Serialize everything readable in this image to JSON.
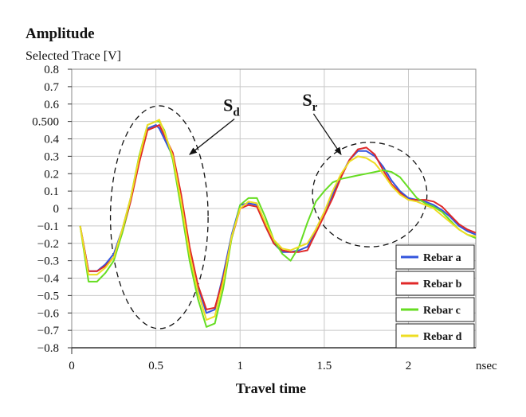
{
  "chart_data": {
    "type": "line",
    "title": "Amplitude",
    "ylabel": "Selected Trace [V]",
    "xlabel": "Travel time",
    "x_unit": "nsec",
    "xlim": [
      0,
      2.4
    ],
    "ylim": [
      -0.8,
      0.8
    ],
    "x_ticks": [
      "0",
      "0.5",
      "1",
      "1.5",
      "2"
    ],
    "y_ticks": [
      "0.8",
      "0.7",
      "0.6",
      "0.500",
      "0.4",
      "0.3",
      "0.2",
      "0.1",
      "0",
      "−0.1",
      "−0.2",
      "−0.3",
      "−0.4",
      "−0.5",
      "−0.6",
      "−0.7",
      "−0.8"
    ],
    "y_tick_values": [
      0.8,
      0.7,
      0.6,
      0.5,
      0.4,
      0.3,
      0.2,
      0.1,
      0,
      -0.1,
      -0.2,
      -0.3,
      -0.4,
      -0.5,
      -0.6,
      -0.7,
      -0.8
    ],
    "grid": true,
    "legend_position": "bottom-right",
    "x": [
      0.05,
      0.1,
      0.15,
      0.2,
      0.25,
      0.3,
      0.35,
      0.4,
      0.45,
      0.5,
      0.52,
      0.55,
      0.6,
      0.65,
      0.7,
      0.75,
      0.8,
      0.85,
      0.9,
      0.95,
      1.0,
      1.05,
      1.1,
      1.15,
      1.2,
      1.25,
      1.3,
      1.35,
      1.4,
      1.45,
      1.5,
      1.55,
      1.6,
      1.65,
      1.7,
      1.75,
      1.8,
      1.85,
      1.9,
      1.95,
      2.0,
      2.05,
      2.1,
      2.15,
      2.2,
      2.25,
      2.3,
      2.35,
      2.4
    ],
    "series": [
      {
        "name": "Rebar a",
        "color": "#3355dd",
        "values": [
          -0.1,
          -0.36,
          -0.36,
          -0.32,
          -0.26,
          -0.12,
          0.06,
          0.28,
          0.46,
          0.48,
          0.46,
          0.4,
          0.3,
          0.06,
          -0.25,
          -0.45,
          -0.6,
          -0.58,
          -0.38,
          -0.15,
          0.02,
          0.03,
          0.02,
          -0.1,
          -0.2,
          -0.25,
          -0.25,
          -0.24,
          -0.22,
          -0.12,
          -0.02,
          0.08,
          0.19,
          0.28,
          0.33,
          0.33,
          0.3,
          0.24,
          0.16,
          0.1,
          0.06,
          0.05,
          0.04,
          0.02,
          -0.01,
          -0.05,
          -0.1,
          -0.13,
          -0.15
        ]
      },
      {
        "name": "Rebar b",
        "color": "#e02828",
        "values": [
          -0.1,
          -0.36,
          -0.36,
          -0.33,
          -0.28,
          -0.14,
          0.04,
          0.26,
          0.45,
          0.47,
          0.48,
          0.42,
          0.32,
          0.08,
          -0.22,
          -0.44,
          -0.58,
          -0.57,
          -0.4,
          -0.17,
          0.0,
          0.02,
          0.01,
          -0.1,
          -0.2,
          -0.24,
          -0.25,
          -0.25,
          -0.24,
          -0.14,
          -0.04,
          0.06,
          0.18,
          0.28,
          0.34,
          0.35,
          0.31,
          0.22,
          0.14,
          0.09,
          0.05,
          0.05,
          0.05,
          0.04,
          0.01,
          -0.04,
          -0.09,
          -0.12,
          -0.14
        ]
      },
      {
        "name": "Rebar c",
        "color": "#66dd22",
        "values": [
          -0.1,
          -0.42,
          -0.42,
          -0.37,
          -0.3,
          -0.14,
          0.06,
          0.3,
          0.48,
          0.5,
          0.5,
          0.45,
          0.28,
          0.0,
          -0.3,
          -0.52,
          -0.68,
          -0.66,
          -0.46,
          -0.17,
          0.02,
          0.06,
          0.06,
          -0.05,
          -0.18,
          -0.26,
          -0.3,
          -0.22,
          -0.08,
          0.04,
          0.1,
          0.15,
          0.17,
          0.18,
          0.19,
          0.2,
          0.21,
          0.22,
          0.21,
          0.18,
          0.12,
          0.06,
          0.03,
          0.01,
          -0.02,
          -0.07,
          -0.12,
          -0.15,
          -0.17
        ]
      },
      {
        "name": "Rebar d",
        "color": "#eedd22",
        "values": [
          -0.1,
          -0.38,
          -0.38,
          -0.34,
          -0.28,
          -0.12,
          0.06,
          0.29,
          0.48,
          0.5,
          0.51,
          0.44,
          0.3,
          0.04,
          -0.26,
          -0.48,
          -0.64,
          -0.62,
          -0.42,
          -0.16,
          0.0,
          0.04,
          0.03,
          -0.08,
          -0.18,
          -0.23,
          -0.24,
          -0.22,
          -0.2,
          -0.12,
          -0.02,
          0.1,
          0.2,
          0.27,
          0.3,
          0.29,
          0.26,
          0.2,
          0.13,
          0.08,
          0.05,
          0.04,
          0.02,
          0.0,
          -0.04,
          -0.08,
          -0.12,
          -0.15,
          -0.16
        ]
      }
    ],
    "annotations": [
      {
        "id": "sd",
        "label": "S",
        "subscript": "d",
        "text_x": 0.9,
        "text_y": 0.56,
        "arrow_to": [
          0.7,
          0.31
        ],
        "ellipse": {
          "cx": 0.52,
          "cy": -0.05,
          "rx": 0.29,
          "ry": 0.64
        }
      },
      {
        "id": "sr",
        "label": "S",
        "subscript": "r",
        "text_x": 1.37,
        "text_y": 0.59,
        "arrow_to": [
          1.6,
          0.31
        ],
        "ellipse": {
          "cx": 1.77,
          "cy": 0.08,
          "rx": 0.34,
          "ry": 0.3
        }
      }
    ]
  }
}
